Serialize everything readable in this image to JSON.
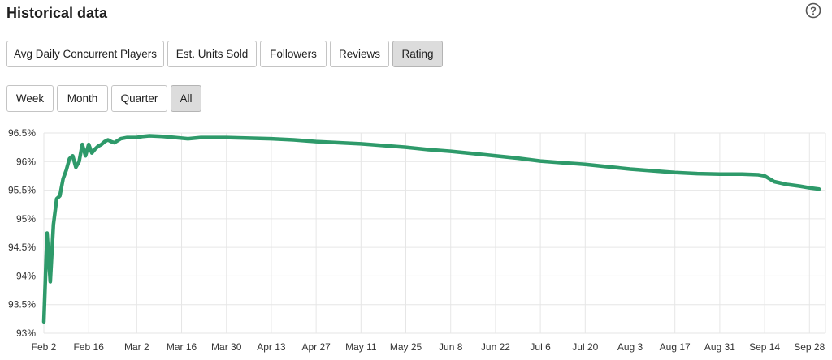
{
  "header": {
    "title": "Historical data",
    "help_icon": "help-circle-icon"
  },
  "metric_tabs": [
    {
      "label": "Avg Daily Concurrent Players",
      "active": false
    },
    {
      "label": "Est. Units Sold",
      "active": false
    },
    {
      "label": "Followers",
      "active": false
    },
    {
      "label": "Reviews",
      "active": false
    },
    {
      "label": "Rating",
      "active": true
    }
  ],
  "range_tabs": [
    {
      "label": "Week",
      "active": false
    },
    {
      "label": "Month",
      "active": false
    },
    {
      "label": "Quarter",
      "active": false
    },
    {
      "label": "All",
      "active": true
    }
  ],
  "colors": {
    "line": "#2e9a6a",
    "grid": "#e6e6e6",
    "active_button": "#dcdcdc"
  },
  "chart_data": {
    "type": "line",
    "title": "",
    "xlabel": "",
    "ylabel": "",
    "ylim": [
      93,
      96.5
    ],
    "grid": true,
    "y_ticks": [
      "93%",
      "93.5%",
      "94%",
      "94.5%",
      "95%",
      "95.5%",
      "96%",
      "96.5%"
    ],
    "x_ticks": [
      "Feb 2",
      "Feb 16",
      "Mar 2",
      "Mar 16",
      "Mar 30",
      "Apr 13",
      "Apr 27",
      "May 11",
      "May 25",
      "Jun 8",
      "Jun 22",
      "Jul 6",
      "Jul 20",
      "Aug 3",
      "Aug 17",
      "Aug 31",
      "Sep 14",
      "Sep 28"
    ],
    "series": [
      {
        "x": [
          "Feb 2",
          "Feb 3",
          "Feb 4",
          "Feb 5",
          "Feb 6",
          "Feb 7",
          "Feb 8",
          "Feb 9",
          "Feb 10",
          "Feb 11",
          "Feb 12",
          "Feb 13",
          "Feb 14",
          "Feb 15",
          "Feb 16",
          "Feb 17",
          "Feb 18",
          "Feb 19",
          "Feb 20",
          "Feb 21",
          "Feb 22",
          "Feb 23",
          "Feb 24",
          "Feb 26",
          "Feb 28",
          "Mar 2",
          "Mar 4",
          "Mar 6",
          "Mar 10",
          "Mar 14",
          "Mar 18",
          "Mar 22",
          "Mar 26",
          "Mar 30",
          "Apr 6",
          "Apr 13",
          "Apr 20",
          "Apr 27",
          "May 4",
          "May 11",
          "May 18",
          "May 25",
          "Jun 1",
          "Jun 8",
          "Jun 15",
          "Jun 22",
          "Jun 29",
          "Jul 6",
          "Jul 13",
          "Jul 20",
          "Jul 27",
          "Aug 3",
          "Aug 10",
          "Aug 17",
          "Aug 24",
          "Aug 31",
          "Sep 7",
          "Sep 12",
          "Sep 14",
          "Sep 17",
          "Sep 21",
          "Sep 25",
          "Sep 28",
          "Oct 1"
        ],
        "y": [
          93.2,
          94.75,
          93.9,
          94.9,
          95.35,
          95.4,
          95.7,
          95.85,
          96.05,
          96.1,
          95.9,
          96.0,
          96.3,
          96.1,
          96.3,
          96.15,
          96.22,
          96.27,
          96.3,
          96.35,
          96.38,
          96.35,
          96.33,
          96.4,
          96.42,
          96.42,
          96.44,
          96.45,
          96.44,
          96.42,
          96.4,
          96.42,
          96.42,
          96.42,
          96.41,
          96.4,
          96.38,
          96.35,
          96.33,
          96.31,
          96.28,
          96.25,
          96.21,
          96.18,
          96.14,
          96.1,
          96.06,
          96.01,
          95.98,
          95.95,
          95.91,
          95.87,
          95.84,
          95.81,
          95.79,
          95.78,
          95.78,
          95.77,
          95.75,
          95.65,
          95.6,
          95.57,
          95.54,
          95.52
        ]
      }
    ]
  }
}
